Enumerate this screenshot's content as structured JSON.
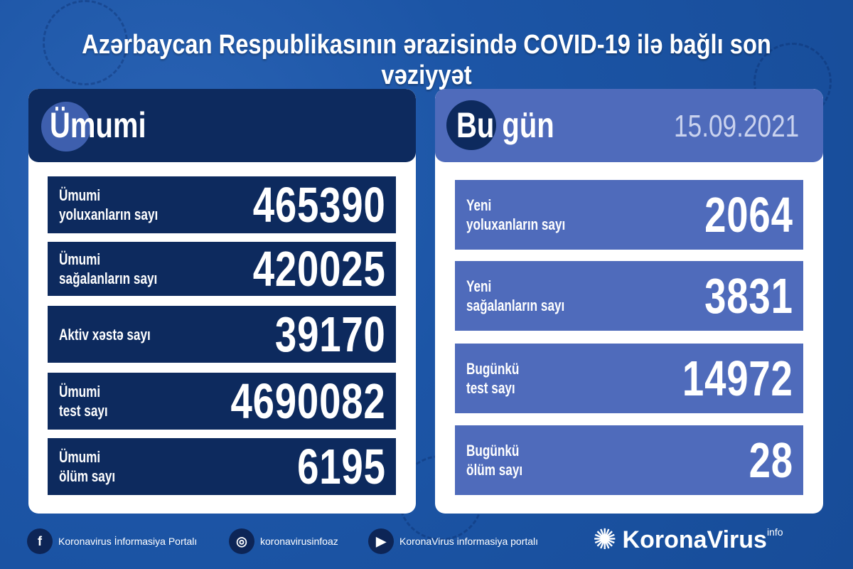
{
  "title": "Azərbaycan Respublikasının ərazisində COVID-19 ilə bağlı son vəziyyət",
  "colors": {
    "background": "#1c55a6",
    "total_panel": "#0d2a5e",
    "today_panel": "#4f6bbb"
  },
  "total": {
    "header": "Ümumi",
    "rows": [
      {
        "label": "Ümumi\nyoluxanların sayı",
        "value": "465390"
      },
      {
        "label": "Ümumi\nsağalanların sayı",
        "value": "420025"
      },
      {
        "label": "Aktiv xəstə sayı",
        "value": "39170"
      },
      {
        "label": "Ümumi\ntest sayı",
        "value": "4690082"
      },
      {
        "label": "Ümumi\nölüm sayı",
        "value": "6195"
      }
    ]
  },
  "today": {
    "header": "Bu gün",
    "date": "15.09.2021",
    "rows": [
      {
        "label": "Yeni\nyoluxanların sayı",
        "value": "2064"
      },
      {
        "label": "Yeni\nsağalanların sayı",
        "value": "3831"
      },
      {
        "label": "Bugünkü\ntest sayı",
        "value": "14972"
      },
      {
        "label": "Bugünkü\nölüm sayı",
        "value": "28"
      }
    ]
  },
  "footer": {
    "facebook": "Koronavirus İnformasiya Portalı",
    "instagram": "koronavirusinfoaz",
    "youtube": "KoronaVirus informasiya portalı",
    "logo": "KoronaVirus",
    "logo_sup": "info"
  }
}
